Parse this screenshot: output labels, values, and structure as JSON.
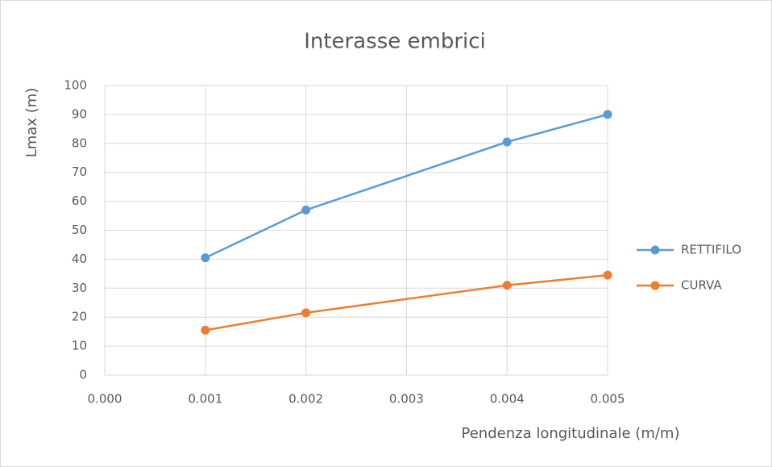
{
  "chart_data": {
    "type": "line",
    "title": "Interasse embrici",
    "x_label": "Pendenza longitudinale (m/m)",
    "y_label": "Lmax (m)",
    "x": [
      0.001,
      0.002,
      0.004,
      0.005
    ],
    "series": [
      {
        "name": "RETTIFILO",
        "color": "#5b9bd5",
        "values": [
          40.5,
          57,
          80.5,
          90
        ]
      },
      {
        "name": "CURVA",
        "color": "#ed7d31",
        "values": [
          15.5,
          21.5,
          31,
          34.5
        ]
      }
    ],
    "xlim": [
      0,
      0.005
    ],
    "xticks": [
      {
        "value": 0,
        "label": "0.000"
      },
      {
        "value": 0.001,
        "label": "0.001"
      },
      {
        "value": 0.002,
        "label": "0.002"
      },
      {
        "value": 0.003,
        "label": "0.003"
      },
      {
        "value": 0.004,
        "label": "0.004"
      },
      {
        "value": 0.005,
        "label": "0.005"
      }
    ],
    "ylim": [
      0,
      100
    ],
    "yticks": [
      0,
      10,
      20,
      30,
      40,
      50,
      60,
      70,
      80,
      90,
      100
    ],
    "grid": true,
    "legend": "right"
  }
}
